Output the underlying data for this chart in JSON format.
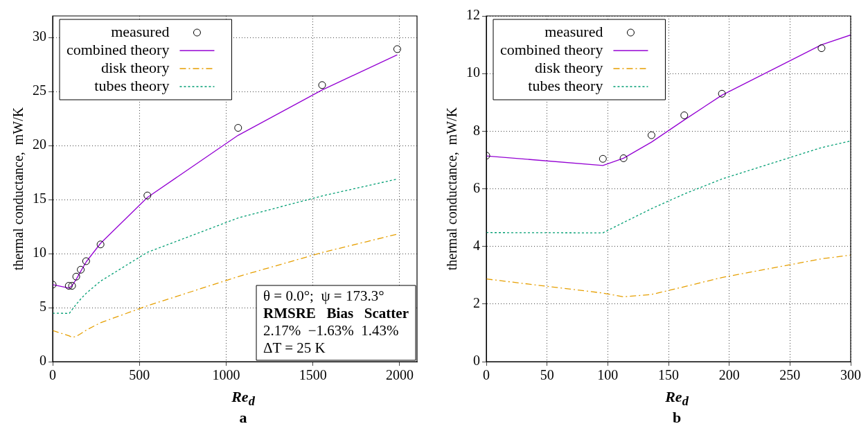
{
  "chart_data": [
    {
      "type": "line",
      "title": "a",
      "xlabel": "Re$_{d}$",
      "ylabel": "thermal conductance,  mW/K",
      "xlim": [
        0,
        2100
      ],
      "xticks": [
        0,
        500,
        1000,
        1500,
        2000
      ],
      "ylim": [
        0,
        32
      ],
      "yticks": [
        0,
        5,
        10,
        15,
        20,
        25,
        30
      ],
      "grid": true,
      "legend": "top left",
      "annotations": [
        "θ = 0.0°;  ψ = 173.3°",
        "RMSRE   Bias   Scatter",
        "2.17%  −1.63%  1.43%",
        "ΔT = 25 K"
      ],
      "series": [
        {
          "name": "measured",
          "type": "scatter",
          "marker": "circle",
          "color": "#000000",
          "x": [
            0,
            93,
            112,
            136,
            162,
            193,
            276,
            546,
            1069,
            1553,
            1986
          ],
          "values": [
            7.13,
            7.02,
            7.02,
            7.87,
            8.51,
            9.3,
            10.85,
            15.38,
            21.64,
            25.6,
            28.93
          ]
        },
        {
          "name": "combined theory",
          "line_style": "solid",
          "color": "#9400d3",
          "x": [
            0,
            96,
            113,
            136,
            163,
            194,
            276,
            546,
            1069,
            1553,
            1986
          ],
          "values": [
            7.13,
            6.81,
            7.06,
            7.62,
            8.39,
            9.25,
            10.95,
            15.2,
            20.95,
            25.15,
            28.4
          ]
        },
        {
          "name": "disk theory",
          "line_style": "dashed",
          "color": "#e69f00",
          "x": [
            0,
            96,
            113,
            136,
            163,
            194,
            276,
            546,
            1069,
            1553,
            1986
          ],
          "values": [
            2.88,
            2.38,
            2.25,
            2.33,
            2.6,
            2.92,
            3.6,
            5.17,
            7.87,
            10.1,
            11.8
          ]
        },
        {
          "name": "tubes theory",
          "line_style": "dotted",
          "color": "#009e73",
          "x": [
            0,
            96,
            113,
            136,
            163,
            194,
            276,
            546,
            1069,
            1553,
            1986
          ],
          "values": [
            4.48,
            4.47,
            4.83,
            5.31,
            5.82,
            6.34,
            7.45,
            10.12,
            13.3,
            15.34,
            16.9
          ]
        }
      ]
    },
    {
      "type": "line",
      "title": "b",
      "xlabel": "Re$_{d}$",
      "ylabel": "thermal conductance,  mW/K",
      "xlim": [
        0,
        300
      ],
      "xticks": [
        0,
        50,
        100,
        150,
        200,
        250,
        300
      ],
      "ylim": [
        0,
        12
      ],
      "yticks": [
        0,
        2,
        4,
        6,
        8,
        10,
        12
      ],
      "grid": true,
      "legend": "top left",
      "series": [
        {
          "name": "measured",
          "type": "scatter",
          "marker": "circle",
          "color": "#000000",
          "x": [
            0,
            96,
            113,
            136,
            163,
            194,
            276
          ],
          "values": [
            7.15,
            7.04,
            7.06,
            7.86,
            8.55,
            9.3,
            10.88
          ]
        },
        {
          "name": "combined theory",
          "line_style": "solid",
          "color": "#9400d3",
          "x": [
            0,
            96,
            113,
            136,
            163,
            194,
            276,
            300
          ],
          "values": [
            7.14,
            6.81,
            7.06,
            7.62,
            8.39,
            9.25,
            11.0,
            11.34
          ]
        },
        {
          "name": "disk theory",
          "line_style": "dashed",
          "color": "#e69f00",
          "x": [
            0,
            96,
            113,
            136,
            163,
            194,
            276,
            300
          ],
          "values": [
            2.87,
            2.38,
            2.25,
            2.33,
            2.6,
            2.92,
            3.57,
            3.7
          ]
        },
        {
          "name": "tubes theory",
          "line_style": "dotted",
          "color": "#009e73",
          "x": [
            0,
            96,
            113,
            136,
            163,
            194,
            276,
            300
          ],
          "values": [
            4.48,
            4.47,
            4.83,
            5.31,
            5.82,
            6.34,
            7.43,
            7.66
          ]
        }
      ]
    }
  ]
}
